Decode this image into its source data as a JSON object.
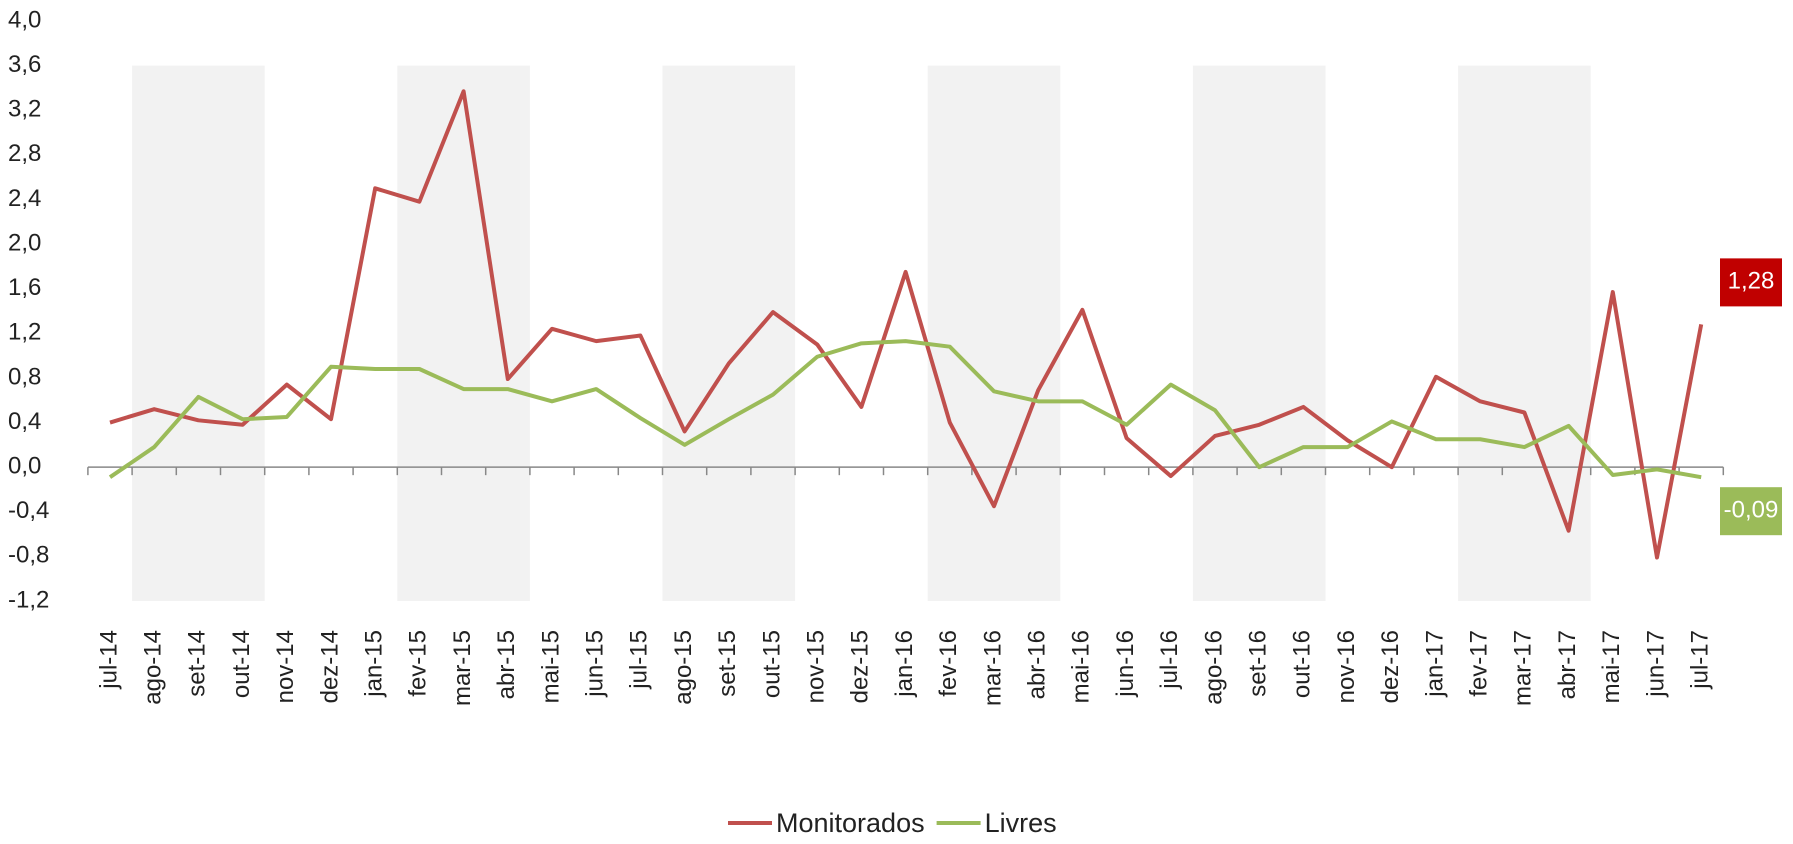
{
  "chart_data": {
    "type": "line",
    "categories": [
      "jul-14",
      "ago-14",
      "set-14",
      "out-14",
      "nov-14",
      "dez-14",
      "jan-15",
      "fev-15",
      "mar-15",
      "abr-15",
      "mai-15",
      "jun-15",
      "jul-15",
      "ago-15",
      "set-15",
      "out-15",
      "nov-15",
      "dez-15",
      "jan-16",
      "fev-16",
      "mar-16",
      "abr-16",
      "mai-16",
      "jun-16",
      "jul-16",
      "ago-16",
      "set-16",
      "out-16",
      "nov-16",
      "dez-16",
      "jan-17",
      "fev-17",
      "mar-17",
      "abr-17",
      "mai-17",
      "jun-17",
      "jul-17"
    ],
    "series": [
      {
        "name": "Monitorados",
        "color": "#c0504d",
        "values": [
          0.4,
          0.52,
          0.42,
          0.38,
          0.74,
          0.43,
          2.5,
          2.38,
          3.37,
          0.79,
          1.24,
          1.13,
          1.18,
          0.32,
          0.93,
          1.39,
          1.1,
          0.54,
          1.75,
          0.4,
          -0.35,
          0.69,
          1.41,
          0.26,
          -0.08,
          0.28,
          0.38,
          0.54,
          0.24,
          0.0,
          0.81,
          0.59,
          0.49,
          -0.57,
          1.57,
          -0.81,
          1.28
        ],
        "value_labels": [
          null,
          null,
          null,
          null,
          null,
          null,
          null,
          null,
          null,
          null,
          null,
          null,
          null,
          null,
          null,
          null,
          null,
          null,
          null,
          null,
          null,
          null,
          null,
          null,
          null,
          null,
          null,
          null,
          null,
          null,
          null,
          null,
          null,
          null,
          null,
          null,
          "1,28"
        ],
        "label_color": "#c00000"
      },
      {
        "name": "Livres",
        "color": "#9bbb59",
        "values": [
          -0.09,
          0.18,
          0.63,
          0.43,
          0.45,
          0.9,
          0.88,
          0.88,
          0.7,
          0.7,
          0.59,
          0.7,
          0.44,
          0.2,
          0.43,
          0.65,
          0.99,
          1.11,
          1.13,
          1.08,
          0.68,
          0.59,
          0.59,
          0.38,
          0.74,
          0.51,
          0.0,
          0.18,
          0.18,
          0.41,
          0.25,
          0.25,
          0.18,
          0.37,
          -0.07,
          -0.02,
          -0.09
        ],
        "value_labels": [
          null,
          null,
          null,
          null,
          null,
          null,
          null,
          null,
          null,
          null,
          null,
          null,
          null,
          null,
          null,
          null,
          null,
          null,
          null,
          null,
          null,
          null,
          null,
          null,
          null,
          null,
          null,
          null,
          null,
          null,
          null,
          null,
          null,
          null,
          null,
          null,
          "-0,09"
        ],
        "label_color": "#9bbb59"
      }
    ],
    "ylim": [
      -1.2,
      4.0
    ],
    "yticks": [
      {
        "value": -1.2,
        "label": "-1,2"
      },
      {
        "value": -0.8,
        "label": "-0,8"
      },
      {
        "value": -0.4,
        "label": "-0,4"
      },
      {
        "value": 0,
        "label": "0,0"
      },
      {
        "value": 0.4,
        "label": "0,4"
      },
      {
        "value": 0.8,
        "label": "0,8"
      },
      {
        "value": 1.2,
        "label": "1,2"
      },
      {
        "value": 1.6,
        "label": "1,6"
      },
      {
        "value": 2.0,
        "label": "2,0"
      },
      {
        "value": 2.4,
        "label": "2,4"
      },
      {
        "value": 2.8,
        "label": "2,8"
      },
      {
        "value": 3.2,
        "label": "3,2"
      },
      {
        "value": 3.6,
        "label": "3,6"
      },
      {
        "value": 4.0,
        "label": "4,0"
      }
    ],
    "legend": "bottom"
  }
}
